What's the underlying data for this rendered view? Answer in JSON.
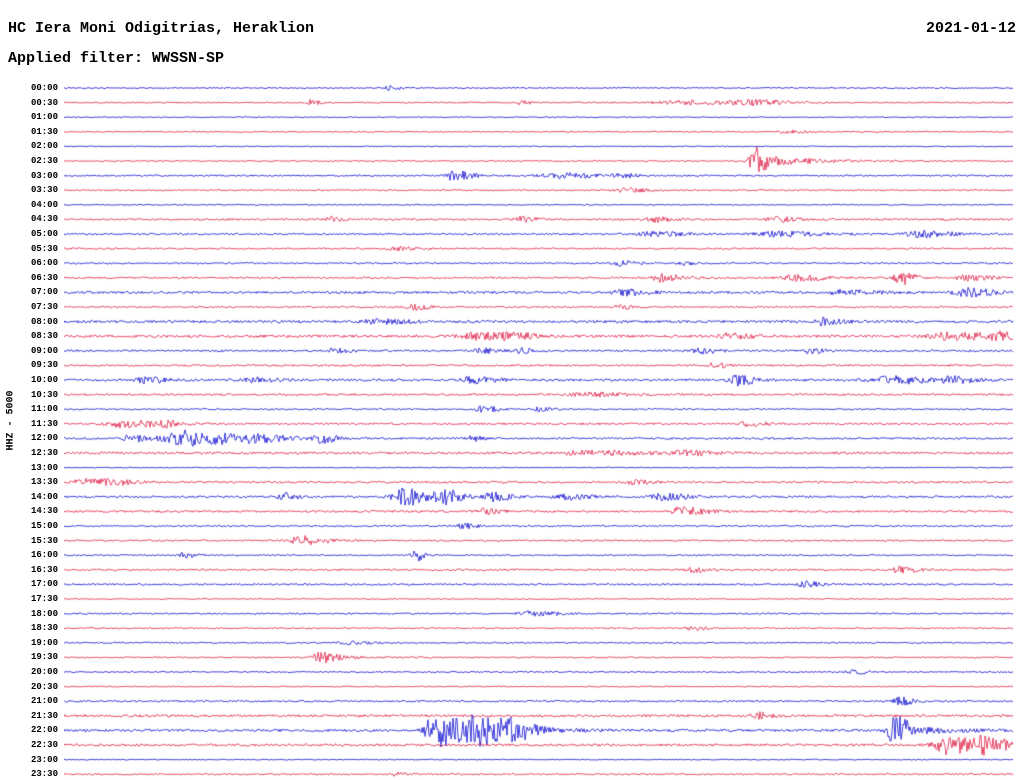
{
  "header": {
    "station_title": "HC Iera Moni Odigitrias, Heraklion",
    "date": "2021-01-12",
    "filter_label": "Applied filter: WWSSN-SP"
  },
  "axis": {
    "y_label": "HHZ - 5000"
  },
  "colors": {
    "trace_blue": "#0000cd",
    "trace_red": "#dc143c",
    "text": "#000000",
    "background": "#ffffff"
  },
  "chart_data": {
    "type": "line",
    "subtype": "helicorder",
    "title": "HC Iera Moni Odigitrias, Heraklion",
    "date": "2021-01-12",
    "filter": "WWSSN-SP",
    "ylabel": "HHZ - 5000",
    "minutes_per_row": 30,
    "legend": "alternating blue/red traces, one row per 30 minutes, 00:00 to 23:30",
    "rows": [
      {
        "time": "00:00",
        "color": "blue",
        "noise": 0.6,
        "events": [
          {
            "x": 0.34,
            "w": 0.01,
            "a": 2.5
          }
        ]
      },
      {
        "time": "00:30",
        "color": "red",
        "noise": 0.7,
        "events": [
          {
            "x": 0.26,
            "w": 0.008,
            "a": 3
          },
          {
            "x": 0.48,
            "w": 0.01,
            "a": 2
          },
          {
            "x": 0.65,
            "w": 0.05,
            "a": 2
          },
          {
            "x": 0.72,
            "w": 0.035,
            "a": 2.5
          }
        ]
      },
      {
        "time": "01:00",
        "color": "blue",
        "noise": 0.5,
        "events": []
      },
      {
        "time": "01:30",
        "color": "red",
        "noise": 0.6,
        "events": [
          {
            "x": 0.76,
            "w": 0.02,
            "a": 1.5
          }
        ]
      },
      {
        "time": "02:00",
        "color": "blue",
        "noise": 0.5,
        "events": []
      },
      {
        "time": "02:30",
        "color": "red",
        "noise": 0.7,
        "events": [
          {
            "x": 0.727,
            "w": 0.012,
            "a": 16,
            "tail": 0.045
          }
        ]
      },
      {
        "time": "03:00",
        "color": "blue",
        "noise": 0.8,
        "events": [
          {
            "x": 0.41,
            "w": 0.015,
            "a": 5
          },
          {
            "x": 0.52,
            "w": 0.035,
            "a": 2.5
          },
          {
            "x": 0.585,
            "w": 0.015,
            "a": 2
          }
        ]
      },
      {
        "time": "03:30",
        "color": "red",
        "noise": 0.7,
        "events": [
          {
            "x": 0.59,
            "w": 0.02,
            "a": 2
          }
        ]
      },
      {
        "time": "04:00",
        "color": "blue",
        "noise": 0.6,
        "events": []
      },
      {
        "time": "04:30",
        "color": "red",
        "noise": 0.9,
        "events": [
          {
            "x": 0.28,
            "w": 0.01,
            "a": 2.5
          },
          {
            "x": 0.48,
            "w": 0.015,
            "a": 2.5
          },
          {
            "x": 0.62,
            "w": 0.015,
            "a": 2.5
          },
          {
            "x": 0.75,
            "w": 0.02,
            "a": 2.5
          }
        ]
      },
      {
        "time": "05:00",
        "color": "blue",
        "noise": 0.9,
        "events": [
          {
            "x": 0.62,
            "w": 0.03,
            "a": 2
          },
          {
            "x": 0.75,
            "w": 0.04,
            "a": 2.5
          },
          {
            "x": 0.9,
            "w": 0.03,
            "a": 3
          }
        ]
      },
      {
        "time": "05:30",
        "color": "red",
        "noise": 0.8,
        "events": [
          {
            "x": 0.35,
            "w": 0.02,
            "a": 1.5
          }
        ]
      },
      {
        "time": "06:00",
        "color": "blue",
        "noise": 0.8,
        "events": [
          {
            "x": 0.585,
            "w": 0.015,
            "a": 3
          },
          {
            "x": 0.65,
            "w": 0.01,
            "a": 2
          }
        ]
      },
      {
        "time": "06:30",
        "color": "red",
        "noise": 0.9,
        "events": [
          {
            "x": 0.63,
            "w": 0.02,
            "a": 4
          },
          {
            "x": 0.77,
            "w": 0.025,
            "a": 3
          },
          {
            "x": 0.88,
            "w": 0.012,
            "a": 7
          },
          {
            "x": 0.95,
            "w": 0.02,
            "a": 3
          }
        ]
      },
      {
        "time": "07:00",
        "color": "blue",
        "noise": 1.2,
        "events": [
          {
            "x": 0.59,
            "w": 0.02,
            "a": 3
          },
          {
            "x": 0.82,
            "w": 0.03,
            "a": 2
          },
          {
            "x": 0.95,
            "w": 0.025,
            "a": 4
          }
        ]
      },
      {
        "time": "07:30",
        "color": "red",
        "noise": 0.8,
        "events": [
          {
            "x": 0.365,
            "w": 0.015,
            "a": 3
          },
          {
            "x": 0.585,
            "w": 0.01,
            "a": 2
          }
        ]
      },
      {
        "time": "08:00",
        "color": "blue",
        "noise": 1.3,
        "events": [
          {
            "x": 0.33,
            "w": 0.03,
            "a": 2
          },
          {
            "x": 0.8,
            "w": 0.015,
            "a": 4
          }
        ]
      },
      {
        "time": "08:30",
        "color": "red",
        "noise": 1.3,
        "events": [
          {
            "x": 0.43,
            "w": 0.03,
            "a": 3.5
          },
          {
            "x": 0.47,
            "w": 0.02,
            "a": 3
          },
          {
            "x": 0.7,
            "w": 0.02,
            "a": 2.5
          },
          {
            "x": 0.93,
            "w": 0.04,
            "a": 3.5
          },
          {
            "x": 0.98,
            "w": 0.02,
            "a": 3
          }
        ]
      },
      {
        "time": "09:00",
        "color": "blue",
        "noise": 1.0,
        "events": [
          {
            "x": 0.285,
            "w": 0.012,
            "a": 4
          },
          {
            "x": 0.44,
            "w": 0.015,
            "a": 2.5
          },
          {
            "x": 0.48,
            "w": 0.01,
            "a": 2.5
          },
          {
            "x": 0.67,
            "w": 0.015,
            "a": 2.5
          },
          {
            "x": 0.785,
            "w": 0.012,
            "a": 3
          }
        ]
      },
      {
        "time": "09:30",
        "color": "red",
        "noise": 0.9,
        "events": [
          {
            "x": 0.685,
            "w": 0.012,
            "a": 3
          }
        ]
      },
      {
        "time": "10:00",
        "color": "blue",
        "noise": 1.2,
        "events": [
          {
            "x": 0.085,
            "w": 0.015,
            "a": 3
          },
          {
            "x": 0.2,
            "w": 0.02,
            "a": 2.5
          },
          {
            "x": 0.43,
            "w": 0.02,
            "a": 3
          },
          {
            "x": 0.71,
            "w": 0.015,
            "a": 5
          },
          {
            "x": 0.87,
            "w": 0.04,
            "a": 3.5
          },
          {
            "x": 0.93,
            "w": 0.02,
            "a": 3
          }
        ]
      },
      {
        "time": "10:30",
        "color": "red",
        "noise": 1.0,
        "events": [
          {
            "x": 0.55,
            "w": 0.03,
            "a": 2
          }
        ]
      },
      {
        "time": "11:00",
        "color": "blue",
        "noise": 0.8,
        "events": [
          {
            "x": 0.44,
            "w": 0.012,
            "a": 3.5
          },
          {
            "x": 0.5,
            "w": 0.01,
            "a": 2.5
          }
        ]
      },
      {
        "time": "11:30",
        "color": "red",
        "noise": 1.0,
        "events": [
          {
            "x": 0.06,
            "w": 0.03,
            "a": 3.5
          },
          {
            "x": 0.1,
            "w": 0.02,
            "a": 3
          },
          {
            "x": 0.72,
            "w": 0.015,
            "a": 2.5
          }
        ]
      },
      {
        "time": "12:00",
        "color": "blue",
        "noise": 1.0,
        "events": [
          {
            "x": 0.07,
            "w": 0.015,
            "a": 3.5
          },
          {
            "x": 0.11,
            "w": 0.02,
            "a": 4
          },
          {
            "x": 0.127,
            "w": 0.018,
            "a": 6
          },
          {
            "x": 0.16,
            "w": 0.02,
            "a": 5
          },
          {
            "x": 0.2,
            "w": 0.03,
            "a": 4
          },
          {
            "x": 0.27,
            "w": 0.012,
            "a": 5
          },
          {
            "x": 0.43,
            "w": 0.01,
            "a": 2.5
          }
        ]
      },
      {
        "time": "12:30",
        "color": "red",
        "noise": 1.2,
        "events": [
          {
            "x": 0.55,
            "w": 0.05,
            "a": 2
          },
          {
            "x": 0.65,
            "w": 0.03,
            "a": 2
          }
        ]
      },
      {
        "time": "13:00",
        "color": "blue",
        "noise": 0.5,
        "events": []
      },
      {
        "time": "13:30",
        "color": "red",
        "noise": 1.0,
        "events": [
          {
            "x": 0.02,
            "w": 0.02,
            "a": 3
          },
          {
            "x": 0.05,
            "w": 0.02,
            "a": 2.5
          },
          {
            "x": 0.6,
            "w": 0.012,
            "a": 2.5
          }
        ]
      },
      {
        "time": "14:00",
        "color": "blue",
        "noise": 1.0,
        "events": [
          {
            "x": 0.23,
            "w": 0.012,
            "a": 3.5
          },
          {
            "x": 0.36,
            "w": 0.025,
            "a": 9
          },
          {
            "x": 0.4,
            "w": 0.015,
            "a": 6,
            "tail": 0.04
          },
          {
            "x": 0.45,
            "w": 0.015,
            "a": 4
          },
          {
            "x": 0.53,
            "w": 0.02,
            "a": 2.5
          },
          {
            "x": 0.63,
            "w": 0.02,
            "a": 3.5
          }
        ]
      },
      {
        "time": "14:30",
        "color": "red",
        "noise": 1.0,
        "events": [
          {
            "x": 0.44,
            "w": 0.015,
            "a": 3
          },
          {
            "x": 0.65,
            "w": 0.02,
            "a": 4.5
          }
        ]
      },
      {
        "time": "15:00",
        "color": "blue",
        "noise": 0.8,
        "events": [
          {
            "x": 0.42,
            "w": 0.012,
            "a": 2.5
          }
        ]
      },
      {
        "time": "15:30",
        "color": "red",
        "noise": 0.8,
        "events": [
          {
            "x": 0.25,
            "w": 0.025,
            "a": 4.5
          }
        ]
      },
      {
        "time": "16:00",
        "color": "blue",
        "noise": 0.7,
        "events": [
          {
            "x": 0.125,
            "w": 0.012,
            "a": 2.5
          },
          {
            "x": 0.37,
            "w": 0.008,
            "a": 6
          }
        ]
      },
      {
        "time": "16:30",
        "color": "red",
        "noise": 0.9,
        "events": [
          {
            "x": 0.66,
            "w": 0.012,
            "a": 3
          },
          {
            "x": 0.88,
            "w": 0.015,
            "a": 3
          }
        ]
      },
      {
        "time": "17:00",
        "color": "blue",
        "noise": 0.9,
        "events": [
          {
            "x": 0.78,
            "w": 0.012,
            "a": 3
          }
        ]
      },
      {
        "time": "17:30",
        "color": "red",
        "noise": 0.6,
        "events": []
      },
      {
        "time": "18:00",
        "color": "blue",
        "noise": 0.8,
        "events": [
          {
            "x": 0.49,
            "w": 0.02,
            "a": 4
          }
        ]
      },
      {
        "time": "18:30",
        "color": "red",
        "noise": 0.7,
        "events": [
          {
            "x": 0.66,
            "w": 0.012,
            "a": 2.5
          }
        ]
      },
      {
        "time": "19:00",
        "color": "blue",
        "noise": 0.7,
        "events": [
          {
            "x": 0.3,
            "w": 0.02,
            "a": 1.5
          }
        ]
      },
      {
        "time": "19:30",
        "color": "red",
        "noise": 0.7,
        "events": [
          {
            "x": 0.27,
            "w": 0.015,
            "a": 6,
            "tail": 0.03
          }
        ]
      },
      {
        "time": "20:00",
        "color": "blue",
        "noise": 0.7,
        "events": [
          {
            "x": 0.83,
            "w": 0.012,
            "a": 2.5
          }
        ]
      },
      {
        "time": "20:30",
        "color": "red",
        "noise": 0.6,
        "events": []
      },
      {
        "time": "21:00",
        "color": "blue",
        "noise": 0.9,
        "events": [
          {
            "x": 0.88,
            "w": 0.012,
            "a": 4
          }
        ]
      },
      {
        "time": "21:30",
        "color": "red",
        "noise": 1.2,
        "events": [
          {
            "x": 0.73,
            "w": 0.012,
            "a": 3.5
          }
        ]
      },
      {
        "time": "22:00",
        "color": "blue",
        "noise": 1.2,
        "events": [
          {
            "x": 0.39,
            "w": 0.018,
            "a": 18,
            "tail": 0.06
          },
          {
            "x": 0.43,
            "w": 0.03,
            "a": 12
          },
          {
            "x": 0.47,
            "w": 0.02,
            "a": 7
          },
          {
            "x": 0.875,
            "w": 0.015,
            "a": 14,
            "tail": 0.04
          }
        ]
      },
      {
        "time": "22:30",
        "color": "red",
        "noise": 1.2,
        "events": [
          {
            "x": 0.93,
            "w": 0.025,
            "a": 9,
            "tail": 0.05
          },
          {
            "x": 0.97,
            "w": 0.02,
            "a": 7
          }
        ]
      },
      {
        "time": "23:00",
        "color": "blue",
        "noise": 0.5,
        "events": []
      },
      {
        "time": "23:30",
        "color": "red",
        "noise": 0.8,
        "events": [
          {
            "x": 0.35,
            "w": 0.01,
            "a": 2
          }
        ]
      }
    ]
  }
}
